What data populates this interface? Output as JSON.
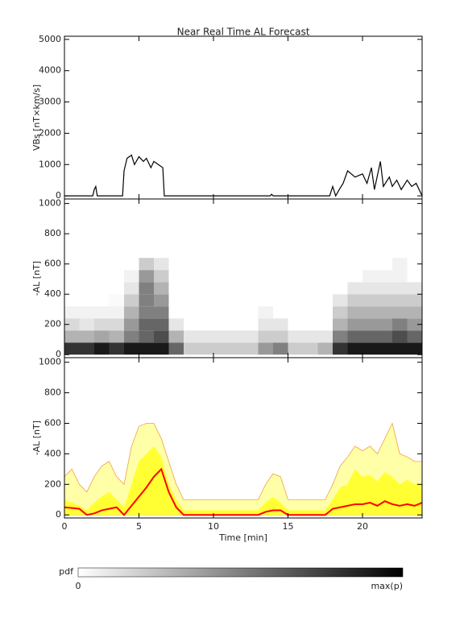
{
  "chart_data": [
    {
      "type": "line",
      "title": "Near Real Time AL Forecast",
      "ylabel": "VBs [nT×km/s]",
      "x": [
        0,
        1.9,
        2,
        2.1,
        2.2,
        3.9,
        4,
        4.2,
        4.5,
        4.7,
        5,
        5.3,
        5.5,
        5.8,
        6,
        6.3,
        6.6,
        6.7,
        13.8,
        13.9,
        14,
        17.8,
        18,
        18.2,
        18.5,
        18.7,
        19,
        19.5,
        20,
        20.3,
        20.6,
        20.8,
        21.2,
        21.4,
        21.8,
        22,
        22.3,
        22.6,
        23,
        23.3,
        23.6,
        24
      ],
      "values": [
        0,
        0,
        200,
        300,
        0,
        0,
        800,
        1200,
        1300,
        1000,
        1250,
        1100,
        1200,
        900,
        1100,
        1000,
        900,
        0,
        0,
        50,
        0,
        0,
        300,
        0,
        250,
        400,
        800,
        600,
        700,
        400,
        900,
        200,
        1100,
        300,
        600,
        300,
        500,
        200,
        500,
        300,
        400,
        0
      ],
      "color": "#000000",
      "xlim": [
        0,
        24
      ],
      "xticks": [
        0,
        5,
        10,
        15,
        20
      ],
      "ylim": [
        -100,
        5100
      ],
      "yticks": [
        0,
        1000,
        2000,
        3000,
        4000,
        5000
      ]
    },
    {
      "type": "heatmap",
      "ylabel": "-AL [nT]",
      "xbins": [
        0,
        1,
        2,
        3,
        4,
        5,
        6,
        7,
        8,
        9,
        10,
        11,
        12,
        13,
        14,
        15,
        16,
        17,
        18,
        19,
        20,
        21,
        22,
        23,
        24
      ],
      "ybins": [
        0,
        80,
        160,
        240,
        320,
        400,
        480,
        560,
        640
      ],
      "z": [
        [
          0.8,
          0.3,
          0.15,
          0.05,
          0,
          0,
          0,
          0
        ],
        [
          0.8,
          0.3,
          0.1,
          0.05,
          0,
          0,
          0,
          0
        ],
        [
          0.9,
          0.35,
          0.15,
          0.05,
          0,
          0,
          0,
          0
        ],
        [
          0.8,
          0.3,
          0.15,
          0.05,
          0.02,
          0,
          0,
          0
        ],
        [
          0.9,
          0.5,
          0.4,
          0.3,
          0.2,
          0.1,
          0.05,
          0
        ],
        [
          0.9,
          0.6,
          0.6,
          0.5,
          0.5,
          0.5,
          0.4,
          0.2
        ],
        [
          0.9,
          0.7,
          0.6,
          0.5,
          0.4,
          0.3,
          0.2,
          0.1
        ],
        [
          0.6,
          0.3,
          0.1,
          0,
          0,
          0,
          0,
          0
        ],
        [
          0.2,
          0.1,
          0,
          0,
          0,
          0,
          0,
          0
        ],
        [
          0.2,
          0.1,
          0,
          0,
          0,
          0,
          0,
          0
        ],
        [
          0.2,
          0.1,
          0,
          0,
          0,
          0,
          0,
          0
        ],
        [
          0.2,
          0.1,
          0,
          0,
          0,
          0,
          0,
          0
        ],
        [
          0.2,
          0.1,
          0,
          0,
          0,
          0,
          0,
          0
        ],
        [
          0.4,
          0.2,
          0.1,
          0.05,
          0,
          0,
          0,
          0
        ],
        [
          0.5,
          0.2,
          0.1,
          0,
          0,
          0,
          0,
          0
        ],
        [
          0.2,
          0.1,
          0,
          0,
          0,
          0,
          0,
          0
        ],
        [
          0.2,
          0.1,
          0,
          0,
          0,
          0,
          0,
          0
        ],
        [
          0.3,
          0.1,
          0,
          0,
          0,
          0,
          0,
          0
        ],
        [
          0.8,
          0.5,
          0.3,
          0.2,
          0.1,
          0,
          0,
          0
        ],
        [
          0.9,
          0.6,
          0.4,
          0.3,
          0.2,
          0.1,
          0,
          0
        ],
        [
          0.9,
          0.6,
          0.4,
          0.3,
          0.2,
          0.1,
          0.05,
          0
        ],
        [
          0.9,
          0.6,
          0.4,
          0.3,
          0.2,
          0.1,
          0.05,
          0
        ],
        [
          0.9,
          0.7,
          0.5,
          0.3,
          0.2,
          0.1,
          0.05,
          0.05
        ],
        [
          0.9,
          0.6,
          0.4,
          0.3,
          0.2,
          0.1,
          0,
          0
        ]
      ],
      "xlim": [
        0,
        24
      ],
      "xticks": [
        0,
        5,
        10,
        15,
        20
      ],
      "ylim": [
        -20,
        1030
      ],
      "yticks": [
        0,
        200,
        400,
        600,
        800,
        1000
      ],
      "colorbar": {
        "title": "pdf",
        "min": 0,
        "max_label": "max(p)"
      }
    },
    {
      "type": "area",
      "ylabel": "-AL [nT]",
      "xlabel": "Time [min]",
      "x": [
        0,
        0.5,
        1,
        1.5,
        2,
        2.5,
        3,
        3.5,
        4,
        4.5,
        5,
        5.5,
        6,
        6.5,
        7,
        7.5,
        8,
        8.5,
        9,
        9.5,
        10,
        10.5,
        11,
        11.5,
        12,
        12.5,
        13,
        13.5,
        14,
        14.5,
        15,
        15.5,
        16,
        16.5,
        17,
        17.5,
        18,
        18.5,
        19,
        19.5,
        20,
        20.5,
        21,
        21.5,
        22,
        22.5,
        23,
        23.5,
        24
      ],
      "series": [
        {
          "color": "#ffffa8",
          "edge": "#f0a040",
          "values": [
            250,
            300,
            200,
            150,
            250,
            320,
            350,
            250,
            200,
            450,
            580,
            600,
            600,
            500,
            350,
            200,
            100,
            100,
            100,
            100,
            100,
            100,
            100,
            100,
            100,
            100,
            100,
            200,
            270,
            250,
            100,
            100,
            100,
            100,
            100,
            100,
            200,
            320,
            380,
            450,
            420,
            450,
            400,
            500,
            600,
            400,
            380,
            350,
            350
          ]
        },
        {
          "color": "#ffff33",
          "values": [
            100,
            80,
            60,
            30,
            80,
            120,
            150,
            100,
            50,
            200,
            350,
            400,
            450,
            380,
            200,
            100,
            30,
            30,
            30,
            30,
            30,
            30,
            30,
            30,
            30,
            30,
            30,
            80,
            120,
            80,
            30,
            30,
            30,
            30,
            30,
            30,
            100,
            180,
            200,
            300,
            250,
            260,
            220,
            280,
            250,
            200,
            230,
            200,
            200
          ]
        },
        {
          "color": "#ff0000",
          "line": true,
          "values": [
            50,
            45,
            40,
            0,
            10,
            30,
            40,
            50,
            0,
            60,
            120,
            180,
            250,
            300,
            150,
            50,
            0,
            0,
            0,
            0,
            0,
            0,
            0,
            0,
            0,
            0,
            0,
            20,
            30,
            30,
            0,
            0,
            0,
            0,
            0,
            0,
            40,
            50,
            60,
            70,
            70,
            80,
            60,
            90,
            70,
            60,
            70,
            60,
            80
          ]
        }
      ],
      "xlim": [
        0,
        24
      ],
      "xticks": [
        0,
        5,
        10,
        15,
        20
      ],
      "ylim": [
        -20,
        1030
      ],
      "yticks": [
        0,
        200,
        400,
        600,
        800,
        1000
      ]
    }
  ]
}
